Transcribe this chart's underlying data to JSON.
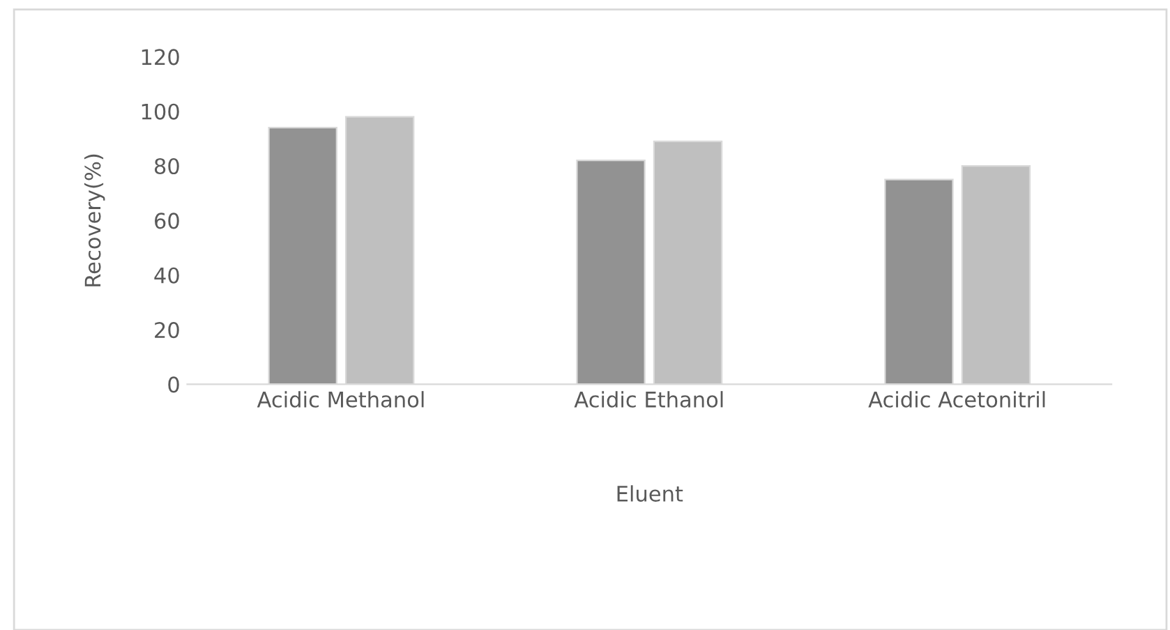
{
  "chart_data": {
    "type": "bar",
    "xlabel": "Eluent",
    "ylabel": "Recovery(%)",
    "categories": [
      "Acidic Methanol",
      "Acidic Ethanol",
      "Acidic Acetonitril"
    ],
    "series": [
      {
        "color": "#929292",
        "values": [
          94,
          82,
          75
        ]
      },
      {
        "color": "#bfbfbf",
        "values": [
          98,
          89,
          80
        ]
      }
    ],
    "ylim": [
      0,
      120
    ],
    "yticks": [
      0,
      20,
      40,
      60,
      80,
      100,
      120
    ],
    "grid": false,
    "legend": false
  }
}
